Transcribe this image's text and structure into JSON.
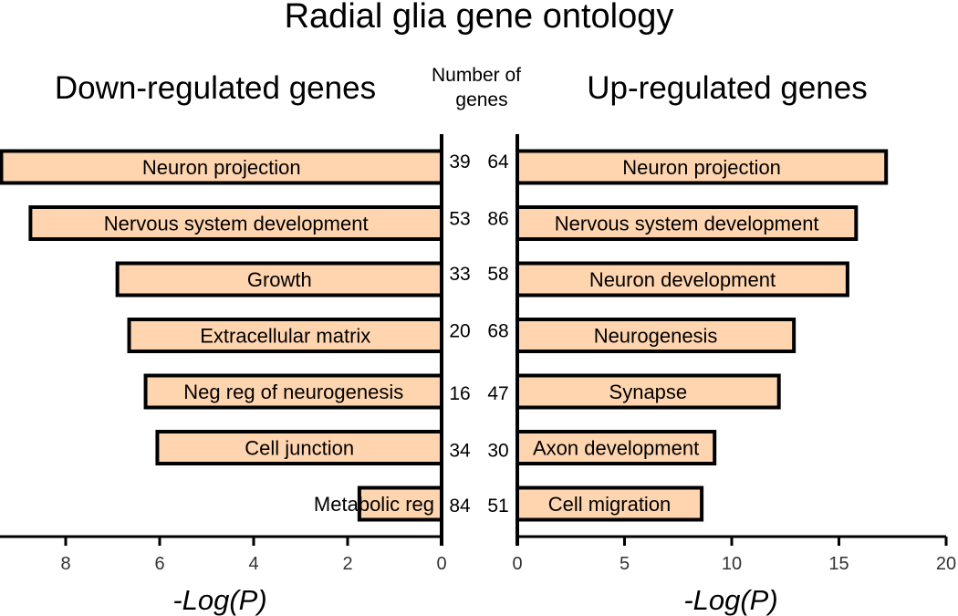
{
  "colors": {
    "bar_fill": "#FFD5B0",
    "bar_stroke": "#000000",
    "axis": "#000000"
  },
  "chart_data": {
    "type": "bar",
    "orientation": "horizontal-diverging",
    "title": "Radial glia gene ontology",
    "count_header": "Number of genes",
    "count_header_lines": [
      "Number of",
      "genes"
    ],
    "panels": [
      {
        "id": "down",
        "title": "Down-regulated genes",
        "xlabel": "-Log(P)",
        "xlim": [
          0,
          9.4
        ],
        "direction": "reversed",
        "ticks": [
          0,
          2,
          4,
          6,
          8
        ],
        "tick_labels": [
          "0",
          "2",
          "4",
          "6",
          "8"
        ],
        "categories": [
          "Neuron projection",
          "Nervous system development",
          "Growth",
          "Extracellular matrix",
          "Neg reg of neurogenesis",
          "Cell junction",
          "Metabolic reg"
        ],
        "values": [
          9.45,
          8.75,
          6.9,
          6.65,
          6.3,
          6.05,
          1.75
        ],
        "gene_counts": [
          "39",
          "53",
          "33",
          "20",
          "16",
          "34",
          "84"
        ]
      },
      {
        "id": "up",
        "title": "Up-regulated genes",
        "xlabel": "-Log(P)",
        "xlim": [
          0,
          20
        ],
        "direction": "normal",
        "ticks": [
          0,
          5,
          10,
          15,
          20
        ],
        "tick_labels": [
          "0",
          "5",
          "10",
          "15",
          "20"
        ],
        "categories": [
          "Neuron projection",
          "Nervous system development",
          "Neuron development",
          "Neurogenesis",
          "Synapse",
          "Axon development",
          "Cell migration"
        ],
        "values": [
          17.2,
          15.8,
          15.4,
          12.9,
          12.2,
          9.2,
          8.6
        ],
        "gene_counts": [
          "64",
          "86",
          "58",
          "68",
          "47",
          "30",
          "51"
        ]
      }
    ]
  }
}
